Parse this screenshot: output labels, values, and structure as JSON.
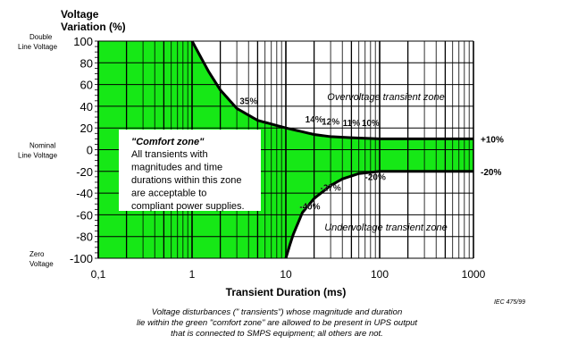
{
  "chart_data": {
    "type": "area",
    "title": "",
    "ylabel_line1": "Voltage",
    "ylabel_line2": "Variation (%)",
    "xlabel": "Transient Duration (ms)",
    "x_scale": "log",
    "xlim": [
      0.1,
      1000
    ],
    "ylim": [
      -100,
      100
    ],
    "grid": true,
    "x_ticks": [
      "0,1",
      "1",
      "10",
      "100",
      "1000"
    ],
    "x_tick_values": [
      0.1,
      1,
      10,
      100,
      1000
    ],
    "y_ticks": [
      100,
      80,
      60,
      40,
      20,
      0,
      -20,
      -40,
      -60,
      -80,
      -100
    ],
    "y_side_labels": [
      {
        "l1": "Double",
        "l2": "Line Voltage",
        "at": 100
      },
      {
        "l1": "Nominal",
        "l2": "Line Voltage",
        "at": 0
      },
      {
        "l1": "Zero",
        "l2": "Voltage",
        "at": -100
      }
    ],
    "fill_color": "#16e816",
    "series": [
      {
        "key": "upper",
        "x": [
          1,
          1.5,
          2,
          3,
          5,
          10,
          20,
          30,
          50,
          100,
          1000
        ],
        "y": [
          100,
          72,
          55,
          38,
          27,
          20,
          14,
          12,
          11,
          10,
          10
        ]
      },
      {
        "key": "lower",
        "x": [
          10,
          11,
          12,
          15,
          20,
          30,
          40,
          60,
          100,
          1000
        ],
        "y": [
          -100,
          -88,
          -78,
          -58,
          -45,
          -33,
          -27,
          -22,
          -20,
          -20
        ]
      }
    ],
    "point_labels": [
      {
        "text": "35%",
        "x": 4,
        "y": 42
      },
      {
        "text": "14%",
        "x": 20,
        "y": 25
      },
      {
        "text": "12%",
        "x": 30,
        "y": 23
      },
      {
        "text": "11%",
        "x": 50,
        "y": 22
      },
      {
        "text": "10%",
        "x": 80,
        "y": 22
      },
      {
        "text": "-27%",
        "x": 30,
        "y": -38
      },
      {
        "text": "-40%",
        "x": 18,
        "y": -55
      },
      {
        "text": "-20%",
        "x": 90,
        "y": -28
      }
    ],
    "end_labels": [
      "+10%",
      "-20%"
    ],
    "zone_labels": [
      "Overvoltage transient zone",
      "Undervoltage transient zone"
    ],
    "comfort_box": {
      "title": "\"Comfort zone\"",
      "lines": [
        "All transients with",
        "magnitudes and time",
        "durations within this zone",
        "are acceptable to",
        "compliant power supplies."
      ]
    },
    "source": "IEC   475/99",
    "caption": [
      "Voltage disturbances (\" transients\") whose magnitude and duration",
      "lie within the green \"comfort zone\" are allowed to be present in UPS output",
      "that is connected to SMPS equipment; all others are not."
    ]
  }
}
